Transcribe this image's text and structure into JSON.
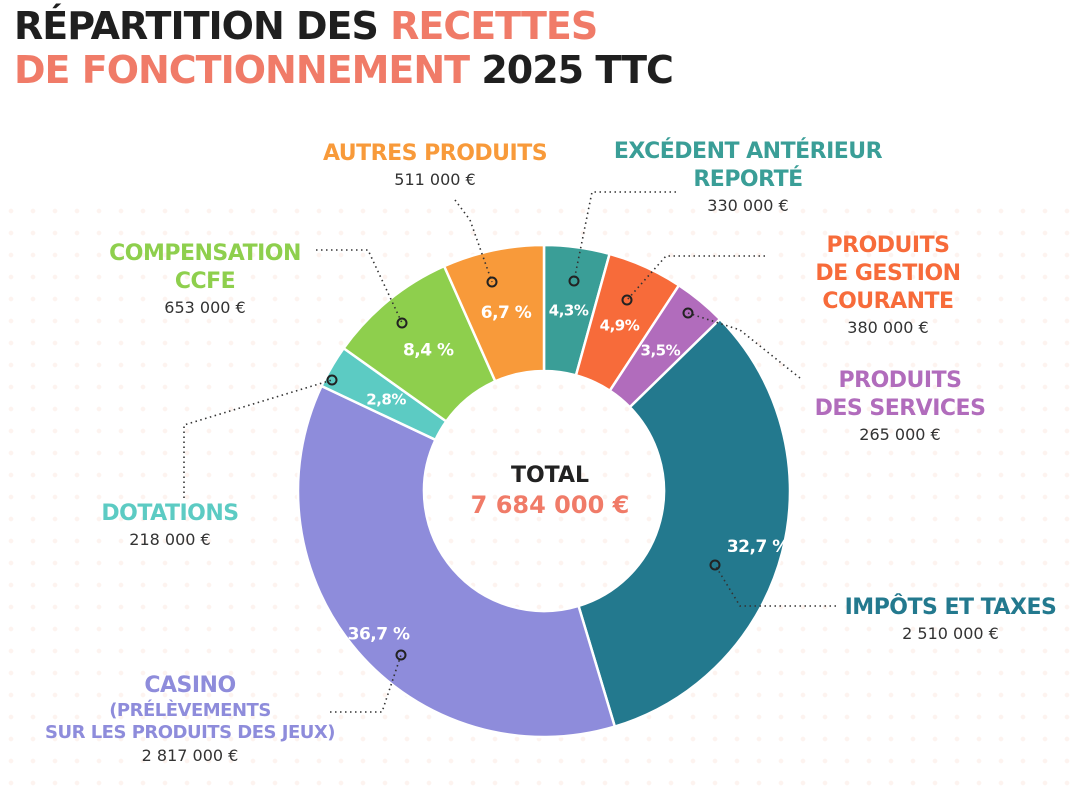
{
  "title": {
    "line1_dark": "RÉPARTITION DES ",
    "line1_accent": "RECETTES",
    "line2_accent": "DE FONCTIONNEMENT",
    "line2_dark": " 2025 TTC"
  },
  "center": {
    "label": "TOTAL",
    "value": "7 684 000 €"
  },
  "labels": {
    "excedent": {
      "name1": "EXCÉDENT ANTÉRIEUR",
      "name2": "REPORTÉ",
      "value": "330 000 €"
    },
    "gestion": {
      "name1": "PRODUITS",
      "name2": "DE GESTION",
      "name3": "COURANTE",
      "value": "380 000 €"
    },
    "services": {
      "name1": "PRODUITS",
      "name2": "DES SERVICES",
      "value": "265 000 €"
    },
    "impots": {
      "name1": "IMPÔTS ET TAXES",
      "value": "2 510 000 €"
    },
    "casino": {
      "name1": "CASINO",
      "name2": "(PRÉLÈVEMENTS",
      "name3": "SUR LES PRODUITS DES JEUX)",
      "value": "2 817 000 €"
    },
    "dotations": {
      "name1": "DOTATIONS",
      "value": "218 000 €"
    },
    "ccfe": {
      "name1": "COMPENSATION",
      "name2": "CCFE",
      "value": "653 000 €"
    },
    "autres": {
      "name1": "AUTRES PRODUITS",
      "value": "511 000 €"
    }
  },
  "chart_data": {
    "type": "pie",
    "donut": true,
    "total": 7684000,
    "slices": [
      {
        "key": "excedent",
        "name": "EXCÉDENT ANTÉRIEUR REPORTÉ",
        "value": 330000,
        "pct_label": "4,3%",
        "color": "#3a9e97"
      },
      {
        "key": "gestion",
        "name": "PRODUITS DE GESTION COURANTE",
        "value": 380000,
        "pct_label": "4,9%",
        "color": "#f76b3a"
      },
      {
        "key": "services",
        "name": "PRODUITS DES SERVICES",
        "value": 265000,
        "pct_label": "3,5%",
        "color": "#b16cbc"
      },
      {
        "key": "impots",
        "name": "IMPÔTS ET TAXES",
        "value": 2510000,
        "pct_label": "32,7 %",
        "color": "#23798e"
      },
      {
        "key": "casino",
        "name": "CASINO (PRÉLÈVEMENTS SUR LES PRODUITS DES JEUX)",
        "value": 2817000,
        "pct_label": "36,7 %",
        "color": "#8e8cdb"
      },
      {
        "key": "dotations",
        "name": "DOTATIONS",
        "value": 218000,
        "pct_label": "2,8%",
        "color": "#5ccbc3"
      },
      {
        "key": "ccfe",
        "name": "COMPENSATION CCFE",
        "value": 653000,
        "pct_label": "8,4 %",
        "color": "#8ecf4d"
      },
      {
        "key": "autres",
        "name": "AUTRES PRODUITS",
        "value": 511000,
        "pct_label": "6,7 %",
        "color": "#f89a3a"
      }
    ]
  },
  "colors": {
    "title_dark": "#1f1f1f",
    "accent": "#f07b68",
    "excedent": "#3a9e97",
    "gestion": "#f76b3a",
    "services": "#b16cbc",
    "impots": "#23798e",
    "casino": "#8e8cdb",
    "dotations": "#5ccbc3",
    "ccfe": "#8ecf4d",
    "autres": "#f89a3a"
  }
}
